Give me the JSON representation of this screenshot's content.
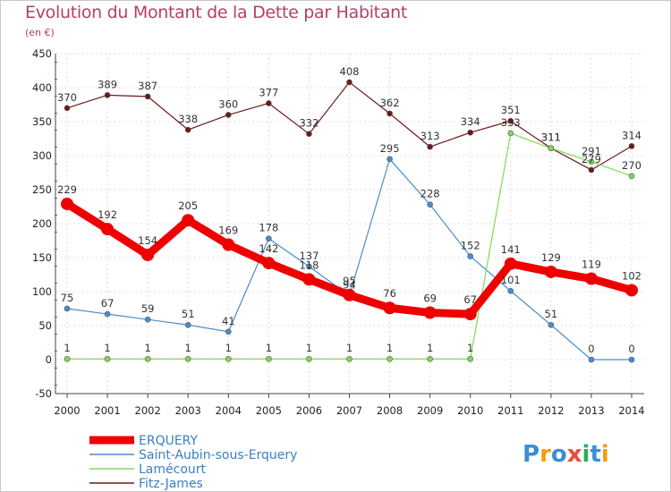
{
  "header": {
    "title": "Evolution du Montant de la Dette par Habitant",
    "subtitle": "(en €)"
  },
  "branding": {
    "logo_text": "Proxiti"
  },
  "chart_data": {
    "type": "line",
    "title": "Evolution du Montant de la Dette par Habitant",
    "subtitle": "(en €)",
    "ylim": [
      -50,
      450
    ],
    "yticks": [
      -50,
      0,
      50,
      100,
      150,
      200,
      250,
      300,
      350,
      400,
      450
    ],
    "x": [
      "2000",
      "2001",
      "2002",
      "2003",
      "2004",
      "2005",
      "2006",
      "2007",
      "2008",
      "2009",
      "2010",
      "2011",
      "2012",
      "2013",
      "2014"
    ],
    "grid": true,
    "legend_position": "bottom-left",
    "series": [
      {
        "name": "ERQUERY",
        "color": "#ee0000",
        "emphasis": true,
        "values": [
          229,
          192,
          154,
          205,
          169,
          142,
          118,
          95,
          76,
          69,
          67,
          141,
          129,
          119,
          102
        ]
      },
      {
        "name": "Saint-Aubin-sous-Erquery",
        "color": "#4a8ccf",
        "values": [
          75,
          67,
          59,
          51,
          41,
          178,
          137,
          94,
          295,
          228,
          152,
          101,
          51,
          0,
          0
        ]
      },
      {
        "name": "Lamécourt",
        "color": "#7ed957",
        "values": [
          1,
          1,
          1,
          1,
          1,
          1,
          1,
          1,
          1,
          1,
          1,
          333,
          311,
          291,
          270
        ]
      },
      {
        "name": "Fitz-James",
        "color": "#6b1a1a",
        "values": [
          370,
          389,
          387,
          338,
          360,
          377,
          332,
          408,
          362,
          313,
          334,
          351,
          311,
          279,
          314
        ]
      }
    ]
  }
}
